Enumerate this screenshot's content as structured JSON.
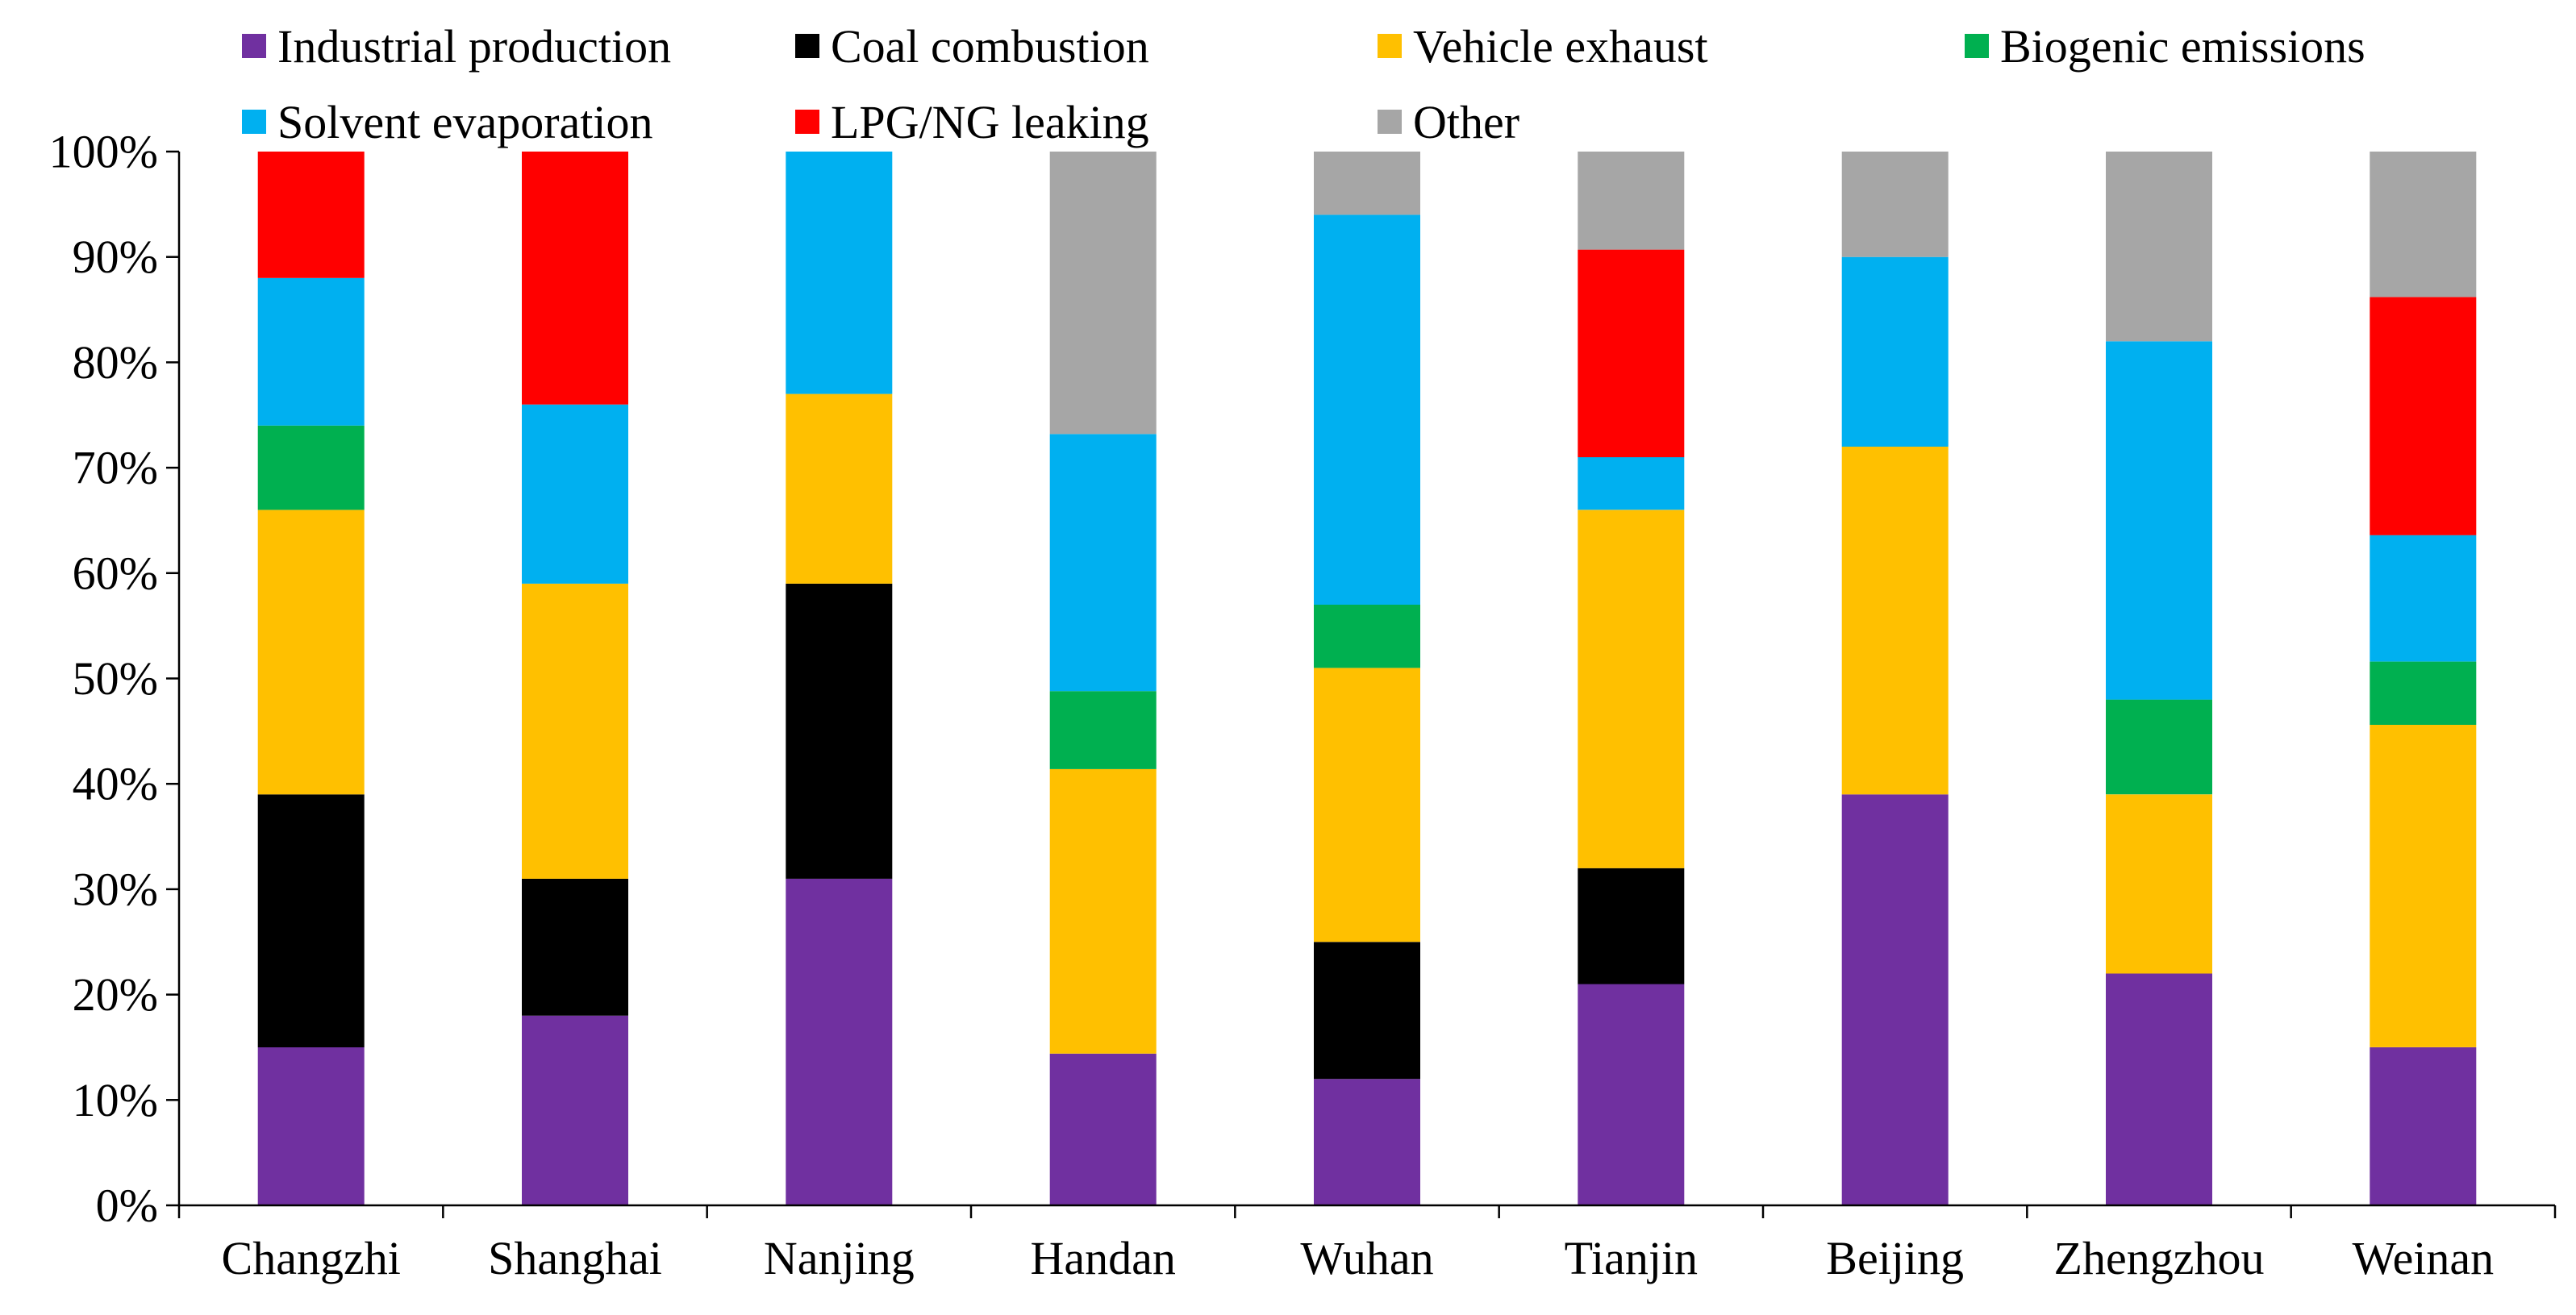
{
  "chart_data": {
    "type": "bar",
    "stacked": true,
    "categories": [
      "Changzhi",
      "Shanghai",
      "Nanjing",
      "Handan",
      "Wuhan",
      "Tianjin",
      "Beijing",
      "Zhengzhou",
      "Weinan"
    ],
    "ylim": [
      0,
      100
    ],
    "yticks": [
      "0%",
      "10%",
      "20%",
      "30%",
      "40%",
      "50%",
      "60%",
      "70%",
      "80%",
      "90%",
      "100%"
    ],
    "grid": false,
    "legend_position": "top",
    "series": [
      {
        "name": "Industrial production",
        "color": "#7030A0",
        "values": [
          15,
          18,
          31,
          14.4,
          12,
          21,
          39,
          22,
          15
        ]
      },
      {
        "name": "Coal combustion",
        "color": "#000000",
        "values": [
          24,
          13,
          28,
          0,
          13,
          11,
          0,
          0,
          0
        ]
      },
      {
        "name": "Vehicle exhaust",
        "color": "#FFC000",
        "values": [
          27,
          28,
          18,
          27,
          26,
          34,
          33,
          17,
          30.6
        ]
      },
      {
        "name": "Biogenic emissions",
        "color": "#00B050",
        "values": [
          8,
          0,
          0,
          7.4,
          6,
          0,
          0,
          9,
          6
        ]
      },
      {
        "name": "Solvent evaporation",
        "color": "#00B0F0",
        "values": [
          14,
          17,
          23,
          24.4,
          37,
          5,
          18,
          34,
          12
        ]
      },
      {
        "name": "LPG/NG leaking",
        "color": "#FF0000",
        "values": [
          12,
          24,
          0,
          0,
          0,
          19.7,
          0,
          0,
          22.6
        ]
      },
      {
        "name": "Other",
        "color": "#A6A6A6",
        "values": [
          0,
          0,
          0,
          26.8,
          6,
          9.3,
          10,
          18,
          13.8
        ]
      }
    ]
  }
}
